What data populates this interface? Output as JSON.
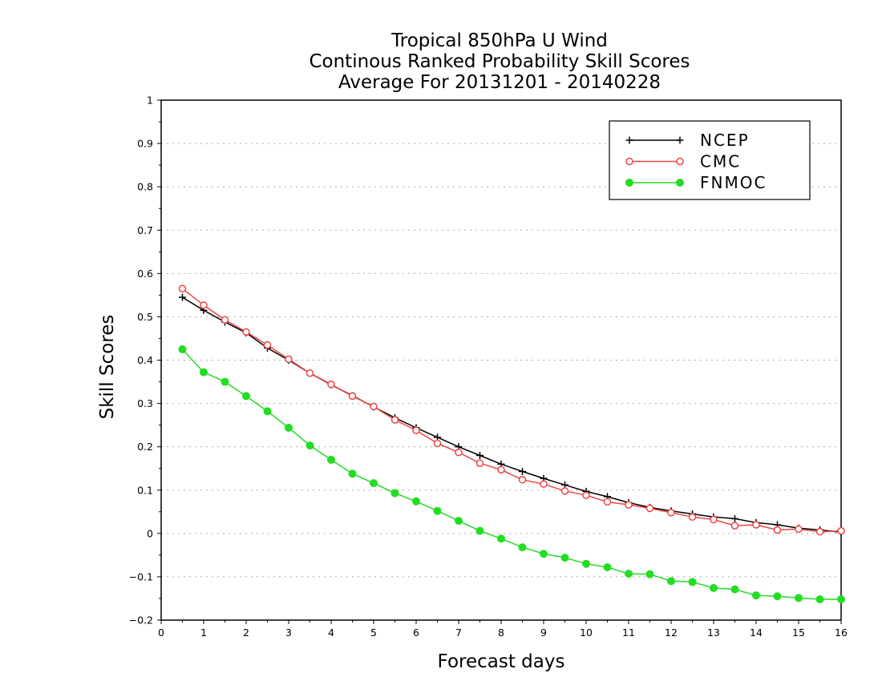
{
  "chart_data": {
    "type": "line",
    "title_lines": [
      "Tropical 850hPa U Wind",
      "Continous Ranked Probability Skill Scores",
      "Average For 20131201 - 20140228"
    ],
    "xlabel": "Forecast days",
    "ylabel": "Skill Scores",
    "xlim": [
      0,
      16
    ],
    "ylim": [
      -0.2,
      1
    ],
    "xticks": [
      "0",
      "1",
      "2",
      "3",
      "4",
      "5",
      "6",
      "7",
      "8",
      "9",
      "10",
      "11",
      "12",
      "13",
      "14",
      "15",
      "16"
    ],
    "yticks": [
      "−0.2",
      "−0.1",
      "0",
      "0.1",
      "0.2",
      "0.3",
      "0.4",
      "0.5",
      "0.6",
      "0.7",
      "0.8",
      "0.9",
      "1"
    ],
    "grid": true,
    "legend_position": "top-right",
    "x": [
      0.5,
      1,
      1.5,
      2,
      2.5,
      3,
      3.5,
      4,
      4.5,
      5,
      5.5,
      6,
      6.5,
      7,
      7.5,
      8,
      8.5,
      9,
      9.5,
      10,
      10.5,
      11,
      11.5,
      12,
      12.5,
      13,
      13.5,
      14,
      14.5,
      15,
      15.5,
      16
    ],
    "series": [
      {
        "name": "NCEP",
        "color": "#000000",
        "marker": "plus",
        "values": [
          0.545,
          0.515,
          0.488,
          0.463,
          0.428,
          0.4,
          0.37,
          0.343,
          0.318,
          0.292,
          0.267,
          0.244,
          0.222,
          0.2,
          0.18,
          0.16,
          0.143,
          0.127,
          0.112,
          0.097,
          0.085,
          0.071,
          0.06,
          0.052,
          0.045,
          0.038,
          0.034,
          0.025,
          0.02,
          0.012,
          0.008,
          0.003
        ]
      },
      {
        "name": "CMC",
        "color": "#ee4444",
        "marker": "open-circle",
        "values": [
          0.565,
          0.527,
          0.493,
          0.465,
          0.435,
          0.402,
          0.37,
          0.344,
          0.317,
          0.293,
          0.262,
          0.238,
          0.208,
          0.187,
          0.162,
          0.147,
          0.124,
          0.114,
          0.098,
          0.088,
          0.073,
          0.066,
          0.058,
          0.048,
          0.038,
          0.032,
          0.018,
          0.02,
          0.008,
          0.01,
          0.004,
          0.006
        ]
      },
      {
        "name": "FNMOC",
        "color": "#22dd22",
        "marker": "filled-circle",
        "values": [
          0.425,
          0.372,
          0.35,
          0.317,
          0.282,
          0.244,
          0.203,
          0.17,
          0.138,
          0.116,
          0.093,
          0.074,
          0.052,
          0.029,
          0.006,
          -0.012,
          -0.032,
          -0.047,
          -0.056,
          -0.07,
          -0.078,
          -0.093,
          -0.094,
          -0.11,
          -0.112,
          -0.126,
          -0.129,
          -0.143,
          -0.145,
          -0.149,
          -0.152,
          -0.152
        ]
      }
    ]
  }
}
